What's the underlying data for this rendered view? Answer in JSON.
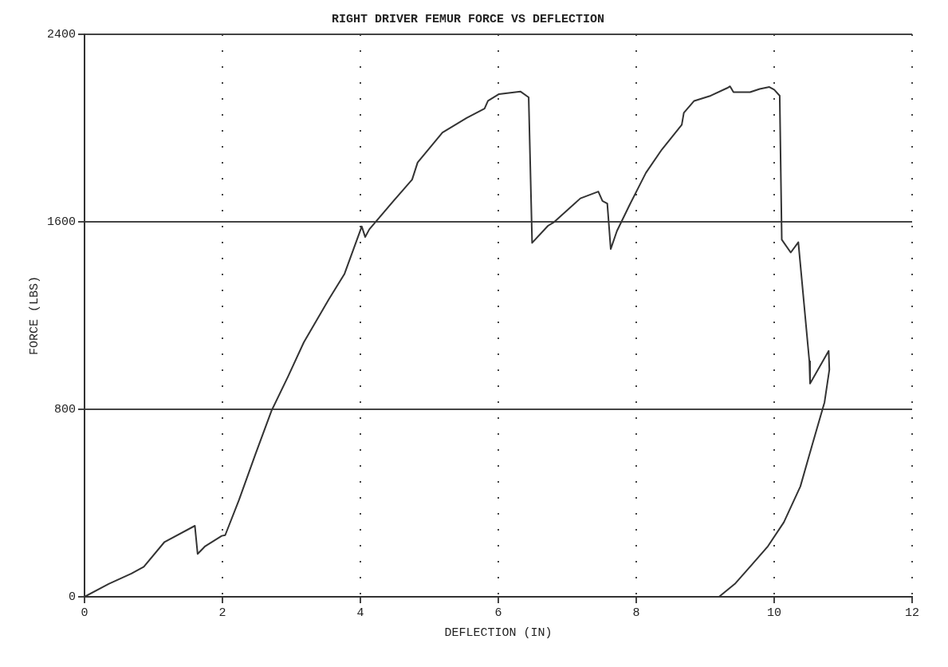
{
  "chart_data": {
    "type": "line",
    "title": "RIGHT DRIVER FEMUR FORCE VS DEFLECTION",
    "xlabel": "DEFLECTION (IN)",
    "ylabel": "FORCE (LBS)",
    "xlim": [
      0,
      12
    ],
    "xticks": [
      0,
      2,
      4,
      6,
      8,
      10,
      12
    ],
    "ylim": [
      0,
      2400
    ],
    "yticks": [
      0,
      800,
      1600,
      2400
    ],
    "grid": true,
    "legend": false,
    "marker": "none",
    "line_style": "solid",
    "series": [
      {
        "color": "#333333",
        "x": [
          0,
          0.35,
          0.68,
          0.86,
          1.16,
          1.6,
          1.64,
          1.75,
          1.99,
          2.04,
          2.24,
          2.48,
          2.71,
          2.95,
          3.18,
          3.54,
          3.77,
          4.02,
          4.07,
          4.13,
          4.48,
          4.75,
          4.83,
          5.19,
          5.54,
          5.8,
          5.85,
          6.01,
          6.32,
          6.44,
          6.49,
          6.72,
          6.8,
          7.19,
          7.45,
          7.51,
          7.58,
          7.63,
          7.72,
          7.9,
          8.14,
          8.37,
          8.66,
          8.69,
          8.84,
          9.08,
          9.32,
          9.36,
          9.41,
          9.65,
          9.79,
          9.93,
          10.0,
          10.08,
          10.11,
          10.24,
          10.35,
          10.51,
          10.52,
          10.79,
          10.8,
          10.73,
          10.55,
          10.38,
          10.14,
          9.91,
          9.67,
          9.43,
          9.2
        ],
        "values": [
          0,
          55,
          99,
          128,
          234,
          303,
          183,
          216,
          260,
          263,
          413,
          610,
          793,
          939,
          1086,
          1268,
          1378,
          1580,
          1535,
          1568,
          1689,
          1780,
          1853,
          1981,
          2043,
          2083,
          2116,
          2145,
          2156,
          2131,
          1510,
          1583,
          1597,
          1700,
          1729,
          1689,
          1678,
          1484,
          1561,
          1670,
          1809,
          1908,
          2014,
          2065,
          2116,
          2138,
          2171,
          2178,
          2153,
          2153,
          2167,
          2175,
          2164,
          2138,
          1524,
          1469,
          1513,
          1005,
          910,
          1049,
          969,
          830,
          647,
          471,
          318,
          216,
          135,
          55,
          0
        ]
      }
    ]
  }
}
